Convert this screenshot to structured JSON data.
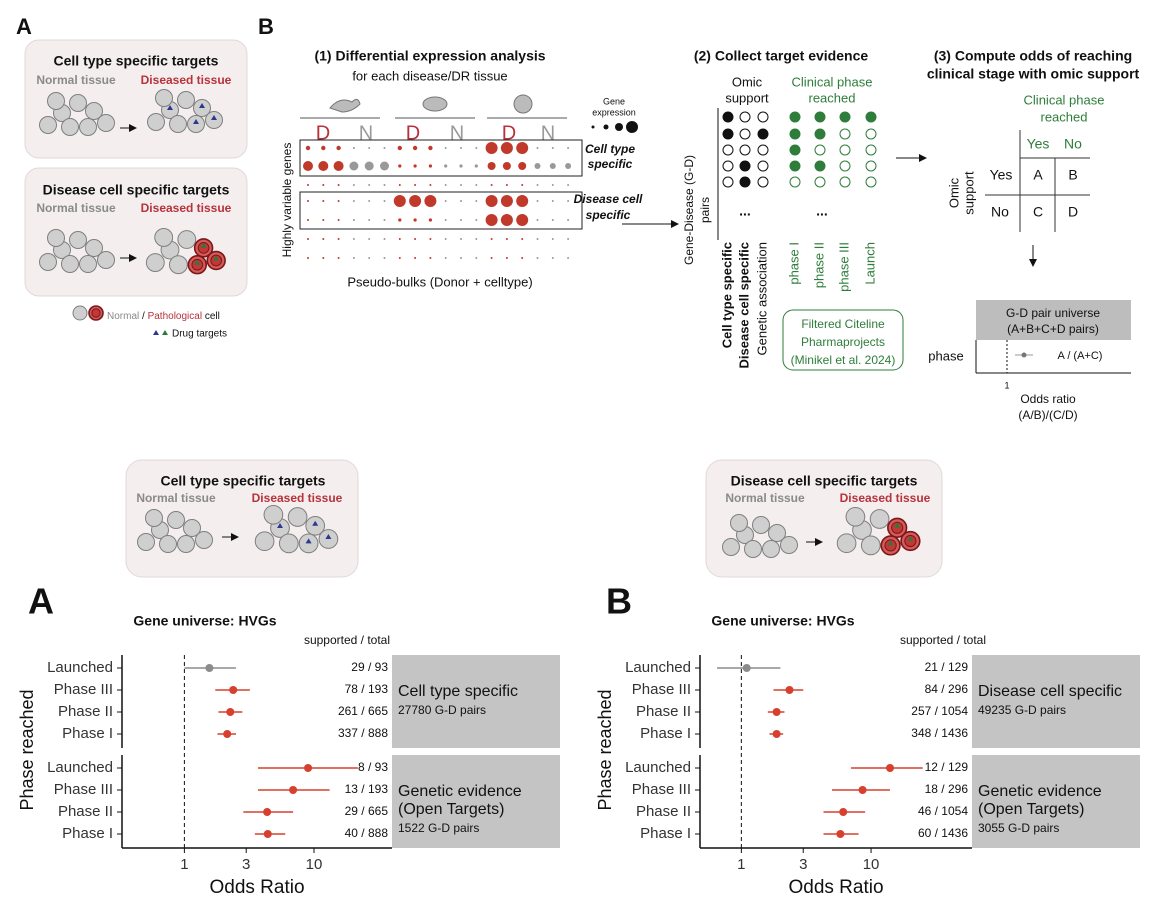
{
  "top": {
    "panel_a": {
      "letter": "A",
      "box1": {
        "title": "Cell type specific targets",
        "normal": "Normal tissue",
        "diseased": "Diseased tissue"
      },
      "box2": {
        "title": "Disease cell specific targets",
        "normal": "Normal tissue",
        "diseased": "Diseased tissue"
      },
      "legend": {
        "normal": "Normal",
        "slash": " / ",
        "pathological": "Pathological",
        "cell": " cell",
        "drug": "Drug targets"
      }
    },
    "panel_b": {
      "letter": "B",
      "step1": {
        "title": "(1) Differential expression analysis",
        "subtitle": "for each disease/DR tissue",
        "gene_expression": [
          "Gene",
          "expression"
        ],
        "group_labels": [
          "D",
          "N",
          "D",
          "N",
          "D",
          "N"
        ],
        "y_label": "Highly variable genes",
        "box1": [
          "Cell type",
          "specific"
        ],
        "box2": [
          "Disease cell",
          "specific"
        ],
        "x_label": "Pseudo-bulks (Donor + celltype)"
      },
      "step2": {
        "title": "(2) Collect target evidence",
        "omic": [
          "Omic",
          "support"
        ],
        "clinical": [
          "Clinical phase",
          "reached"
        ],
        "y_label": [
          "Gene-Disease (G-D)",
          "pairs"
        ],
        "ellipsis": [
          "...",
          "..."
        ],
        "columns": [
          "Cell type specific",
          "Disease cell specific",
          "Genetic association",
          "phase I",
          "phase II",
          "phase III",
          "Launch"
        ],
        "source": [
          "Filtered Citeline",
          "Pharmaprojects",
          "(Minikel et al. 2024)"
        ]
      },
      "step3": {
        "title": [
          "(3) Compute odds of reaching",
          "clinical stage with omic support"
        ],
        "clinical": [
          "Clinical phase",
          "reached"
        ],
        "col_headers": [
          "Yes",
          "No"
        ],
        "row_headers": [
          "Yes",
          "No"
        ],
        "cells": [
          "A",
          "B",
          "C",
          "D"
        ],
        "y_label": [
          "Omic",
          "support"
        ],
        "universe": [
          "G-D pair universe",
          "(A+B+C+D pairs)"
        ],
        "row_label": "phase",
        "estimate": "A / (A+C)",
        "tick": "1",
        "x_label": [
          "Odds ratio",
          "(A/B)/(C/D)"
        ]
      }
    }
  },
  "middle": {
    "left": {
      "title": "Cell type specific targets",
      "normal": "Normal tissue",
      "diseased": "Diseased tissue"
    },
    "right": {
      "title": "Disease cell specific targets",
      "normal": "Normal tissue",
      "diseased": "Diseased tissue"
    }
  },
  "chart_data": [
    {
      "type": "forest",
      "panel": "A",
      "title": "Gene universe: HVGs",
      "column_header": "supported / total",
      "xlabel": "Odds Ratio",
      "ylabel": "Phase reached",
      "log_x": true,
      "xlim": [
        0.33,
        40
      ],
      "xticks": [
        1,
        3,
        10
      ],
      "reference_line": 1,
      "groups": [
        {
          "name": [
            "Cell type specific"
          ],
          "note": "27780 G-D pairs",
          "categories": [
            "Launched",
            "Phase III",
            "Phase II",
            "Phase I"
          ],
          "values": [
            1.56,
            2.38,
            2.26,
            2.14
          ],
          "lower": [
            1.0,
            1.73,
            1.83,
            1.8
          ],
          "upper": [
            2.5,
            3.2,
            2.8,
            2.5
          ],
          "counts": [
            "29 / 93",
            "78 / 193",
            "261 / 665",
            "337 / 888"
          ],
          "colors": [
            "#8c8c8c",
            "#d6402e",
            "#d6402e",
            "#d6402e"
          ]
        },
        {
          "name": [
            "Genetic evidence",
            "(Open Targets)"
          ],
          "note": "1522 G-D pairs",
          "categories": [
            "Launched",
            "Phase III",
            "Phase II",
            "Phase I"
          ],
          "values": [
            9.0,
            6.9,
            4.35,
            4.4
          ],
          "lower": [
            3.7,
            3.7,
            2.85,
            3.5
          ],
          "upper": [
            21.8,
            13.2,
            6.9,
            6.0
          ],
          "counts": [
            "8 / 93",
            "13 / 193",
            "29 / 665",
            "40 / 888"
          ],
          "colors": [
            "#d6402e",
            "#d6402e",
            "#d6402e",
            "#d6402e"
          ]
        }
      ]
    },
    {
      "type": "forest",
      "panel": "B",
      "title": "Gene universe: HVGs",
      "column_header": "supported / total",
      "xlabel": "Odds Ratio",
      "ylabel": "Phase reached",
      "log_x": true,
      "xlim": [
        0.48,
        60
      ],
      "xticks": [
        1,
        3,
        10
      ],
      "reference_line": 1,
      "groups": [
        {
          "name": [
            "Disease cell specific"
          ],
          "note": "49235 G-D pairs",
          "categories": [
            "Launched",
            "Phase III",
            "Phase II",
            "Phase I"
          ],
          "values": [
            1.1,
            2.35,
            1.87,
            1.87
          ],
          "lower": [
            0.65,
            1.77,
            1.6,
            1.65
          ],
          "upper": [
            2.0,
            3.0,
            2.15,
            2.1
          ],
          "counts": [
            "21 / 129",
            "84 / 296",
            "257 / 1054",
            "348 / 1436"
          ],
          "colors": [
            "#8c8c8c",
            "#d6402e",
            "#d6402e",
            "#d6402e"
          ]
        },
        {
          "name": [
            "Genetic evidence",
            "(Open Targets)"
          ],
          "note": "3055 G-D pairs",
          "categories": [
            "Launched",
            "Phase III",
            "Phase II",
            "Phase I"
          ],
          "values": [
            14,
            8.6,
            6.1,
            5.8
          ],
          "lower": [
            7,
            5,
            4.3,
            4.3
          ],
          "upper": [
            25,
            14,
            9,
            8
          ],
          "counts": [
            "12 / 129",
            "18 / 296",
            "46 / 1054",
            "60 / 1436"
          ],
          "colors": [
            "#d6402e",
            "#d6402e",
            "#d6402e",
            "#d6402e"
          ]
        }
      ]
    }
  ]
}
